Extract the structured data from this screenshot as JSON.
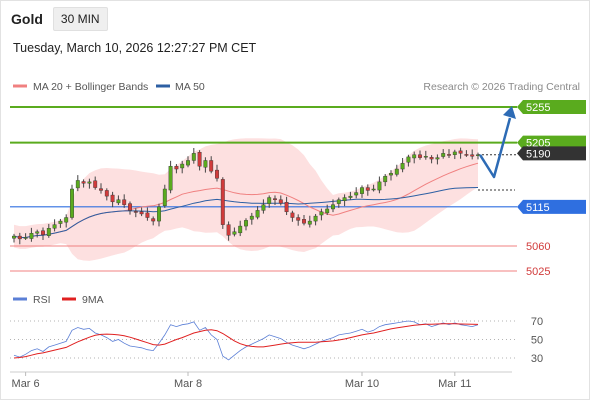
{
  "header": {
    "symbol": "Gold",
    "interval": "30 MIN",
    "datetime": "Tuesday, March 10, 2026 12:27:27 PM CET"
  },
  "credit": "Research © 2026 Trading Central",
  "colors": {
    "ma20": "#f08080",
    "bollinger_fill": "#fde0e0",
    "ma50": "#2d5fa3",
    "resistance": "#5aab1e",
    "support_pivot": "#2f6fe0",
    "support": "#f08080",
    "current": "#333333",
    "arrow": "#2d6bb5",
    "candle_up": "#5aab1e",
    "candle_down": "#d13b3b",
    "rsi": "#5b7fd6",
    "rsi_ma": "#e02020"
  },
  "chart_data": [
    {
      "type": "candlestick",
      "legend": [
        {
          "name": "MA 20 + Bollinger Bands",
          "color": "#f08080"
        },
        {
          "name": "MA 50",
          "color": "#2d5fa3"
        }
      ],
      "ylim": [
        5005,
        5275
      ],
      "x_ticks": [
        {
          "label": "Mar 6",
          "index": 6
        },
        {
          "label": "Mar 8",
          "index": 34
        },
        {
          "label": "Mar 10",
          "index": 64
        },
        {
          "label": "Mar 11",
          "index": 80
        }
      ],
      "levels": [
        {
          "value": 5255,
          "label": "5255",
          "kind": "resistance"
        },
        {
          "value": 5205,
          "label": "5205",
          "kind": "resistance"
        },
        {
          "value": 5190,
          "label": "5190",
          "kind": "current"
        },
        {
          "value": 5115,
          "label": "5115",
          "kind": "pivot"
        },
        {
          "value": 5060,
          "label": "5060",
          "kind": "support"
        },
        {
          "value": 5025,
          "label": "5025",
          "kind": "support"
        }
      ],
      "close": [
        5074,
        5070,
        5072,
        5078,
        5080,
        5076,
        5085,
        5090,
        5095,
        5100,
        5140,
        5152,
        5148,
        5150,
        5142,
        5138,
        5130,
        5122,
        5125,
        5118,
        5110,
        5108,
        5105,
        5100,
        5095,
        5115,
        5140,
        5172,
        5168,
        5175,
        5180,
        5190,
        5172,
        5180,
        5165,
        5155,
        5090,
        5075,
        5080,
        5088,
        5096,
        5102,
        5110,
        5118,
        5128,
        5125,
        5120,
        5108,
        5100,
        5096,
        5092,
        5095,
        5102,
        5108,
        5112,
        5118,
        5125,
        5128,
        5130,
        5135,
        5142,
        5138,
        5140,
        5150,
        5158,
        5162,
        5168,
        5176,
        5185,
        5188,
        5184,
        5186,
        5182,
        5184,
        5190,
        5188,
        5192,
        5190,
        5188,
        5186,
        5188
      ]
    },
    {
      "type": "line",
      "legend": [
        {
          "name": "RSI",
          "color": "#5b7fd6"
        },
        {
          "name": "9MA",
          "color": "#e02020"
        }
      ],
      "ylim": [
        20,
        80
      ],
      "y_ticks": [
        70,
        50,
        30
      ],
      "series": [
        {
          "name": "RSI",
          "values": [
            33,
            31,
            34,
            38,
            40,
            37,
            42,
            44,
            46,
            48,
            60,
            63,
            61,
            62,
            57,
            55,
            52,
            48,
            50,
            46,
            43,
            42,
            41,
            39,
            38,
            46,
            55,
            66,
            64,
            66,
            67,
            69,
            60,
            63,
            55,
            50,
            32,
            28,
            33,
            38,
            42,
            45,
            48,
            51,
            55,
            53,
            51,
            47,
            44,
            42,
            40,
            42,
            45,
            48,
            50,
            52,
            55,
            56,
            57,
            59,
            61,
            58,
            60,
            64,
            66,
            67,
            68,
            69,
            70,
            69,
            66,
            67,
            64,
            66,
            68,
            66,
            68,
            66,
            65,
            64,
            66
          ]
        },
        {
          "name": "9MA",
          "values": [
            30,
            30.5,
            31.5,
            33,
            34.5,
            35.5,
            37,
            38.5,
            40,
            41.5,
            44.5,
            47.5,
            50,
            52.5,
            54.5,
            55.5,
            55.8,
            55.5,
            55,
            54,
            52.5,
            50.5,
            48.5,
            46.5,
            44.5,
            44,
            45,
            47.5,
            50,
            52,
            54.5,
            57,
            58.5,
            60,
            60.5,
            59.5,
            56.5,
            52.5,
            48.5,
            45.5,
            43.5,
            42.5,
            42,
            42,
            43,
            44,
            45,
            46,
            46.5,
            47,
            47,
            47,
            47,
            47.5,
            48,
            48.5,
            49.5,
            50.5,
            52,
            53.5,
            55,
            56,
            57,
            58.5,
            60,
            61.5,
            62.5,
            63.5,
            64.5,
            65.5,
            66,
            66.5,
            66.5,
            66.8,
            67,
            67,
            67,
            66.8,
            66.7,
            66.5,
            66.3
          ]
        }
      ]
    }
  ]
}
